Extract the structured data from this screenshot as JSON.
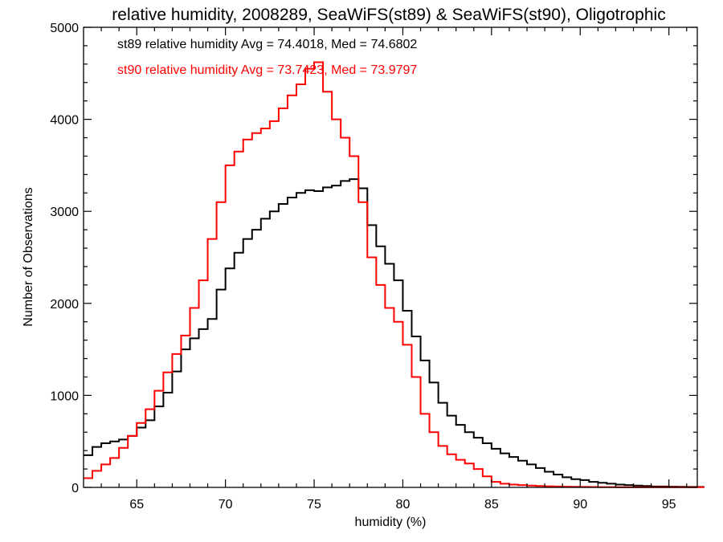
{
  "chart_data": {
    "type": "line",
    "step": true,
    "title": "relative humidity, 2008289, SeaWiFS(st89) & SeaWiFS(st90), Oligotrophic",
    "xlabel": "humidity (%)",
    "ylabel": "Number of Observations",
    "xlim": [
      62,
      96.6
    ],
    "ylim": [
      0,
      5000
    ],
    "xticks": [
      65,
      70,
      75,
      80,
      85,
      90,
      95
    ],
    "yticks": [
      0,
      1000,
      2000,
      3000,
      4000,
      5000
    ],
    "x": [
      62,
      62.5,
      63,
      63.5,
      64,
      64.5,
      65,
      65.5,
      66,
      66.5,
      67,
      67.5,
      68,
      68.5,
      69,
      69.5,
      70,
      70.5,
      71,
      71.5,
      72,
      72.5,
      73,
      73.5,
      74,
      74.5,
      75,
      75.5,
      76,
      76.5,
      77,
      77.5,
      78,
      78.5,
      79,
      79.5,
      80,
      80.5,
      81,
      81.5,
      82,
      82.5,
      83,
      83.5,
      84,
      84.5,
      85,
      85.5,
      86,
      86.5,
      87,
      87.5,
      88,
      88.5,
      89,
      89.5,
      90,
      90.5,
      91,
      91.5,
      92,
      92.5,
      93,
      93.5,
      94,
      94.5,
      95,
      95.5,
      96,
      96.5
    ],
    "series": [
      {
        "name": "st89",
        "color": "#000000",
        "values": [
          350,
          440,
          480,
          500,
          520,
          560,
          650,
          730,
          880,
          1030,
          1260,
          1500,
          1620,
          1720,
          1830,
          2150,
          2380,
          2550,
          2700,
          2800,
          2920,
          3000,
          3080,
          3150,
          3200,
          3230,
          3220,
          3260,
          3280,
          3330,
          3350,
          3250,
          2850,
          2620,
          2430,
          2250,
          1920,
          1640,
          1380,
          1140,
          920,
          780,
          680,
          600,
          540,
          480,
          420,
          370,
          330,
          290,
          250,
          210,
          170,
          140,
          110,
          90,
          80,
          60,
          50,
          40,
          30,
          25,
          20,
          15,
          10,
          10,
          8,
          6,
          5,
          5
        ]
      },
      {
        "name": "st90",
        "color": "#ff0000",
        "values": [
          100,
          180,
          250,
          320,
          430,
          560,
          700,
          850,
          1050,
          1250,
          1450,
          1650,
          1950,
          2250,
          2700,
          3100,
          3500,
          3650,
          3780,
          3850,
          3900,
          3980,
          4120,
          4260,
          4380,
          4550,
          4620,
          4300,
          4000,
          3800,
          3600,
          3100,
          2500,
          2200,
          1950,
          1800,
          1550,
          1200,
          800,
          600,
          450,
          360,
          300,
          260,
          200,
          120,
          60,
          40,
          30,
          25,
          20,
          15,
          12,
          10,
          8,
          6,
          5,
          4,
          3,
          3,
          2,
          2,
          2,
          2,
          2,
          2,
          2,
          2,
          2,
          2
        ]
      }
    ],
    "annotations": [
      {
        "series": "st89",
        "text": "st89 relative humidity Avg = 74.4018, Med = 74.6802",
        "color": "#000000"
      },
      {
        "series": "st90",
        "text": "st90 relative humidity Avg = 73.7423, Med = 73.9797",
        "color": "#ff0000"
      }
    ],
    "grid": false
  }
}
